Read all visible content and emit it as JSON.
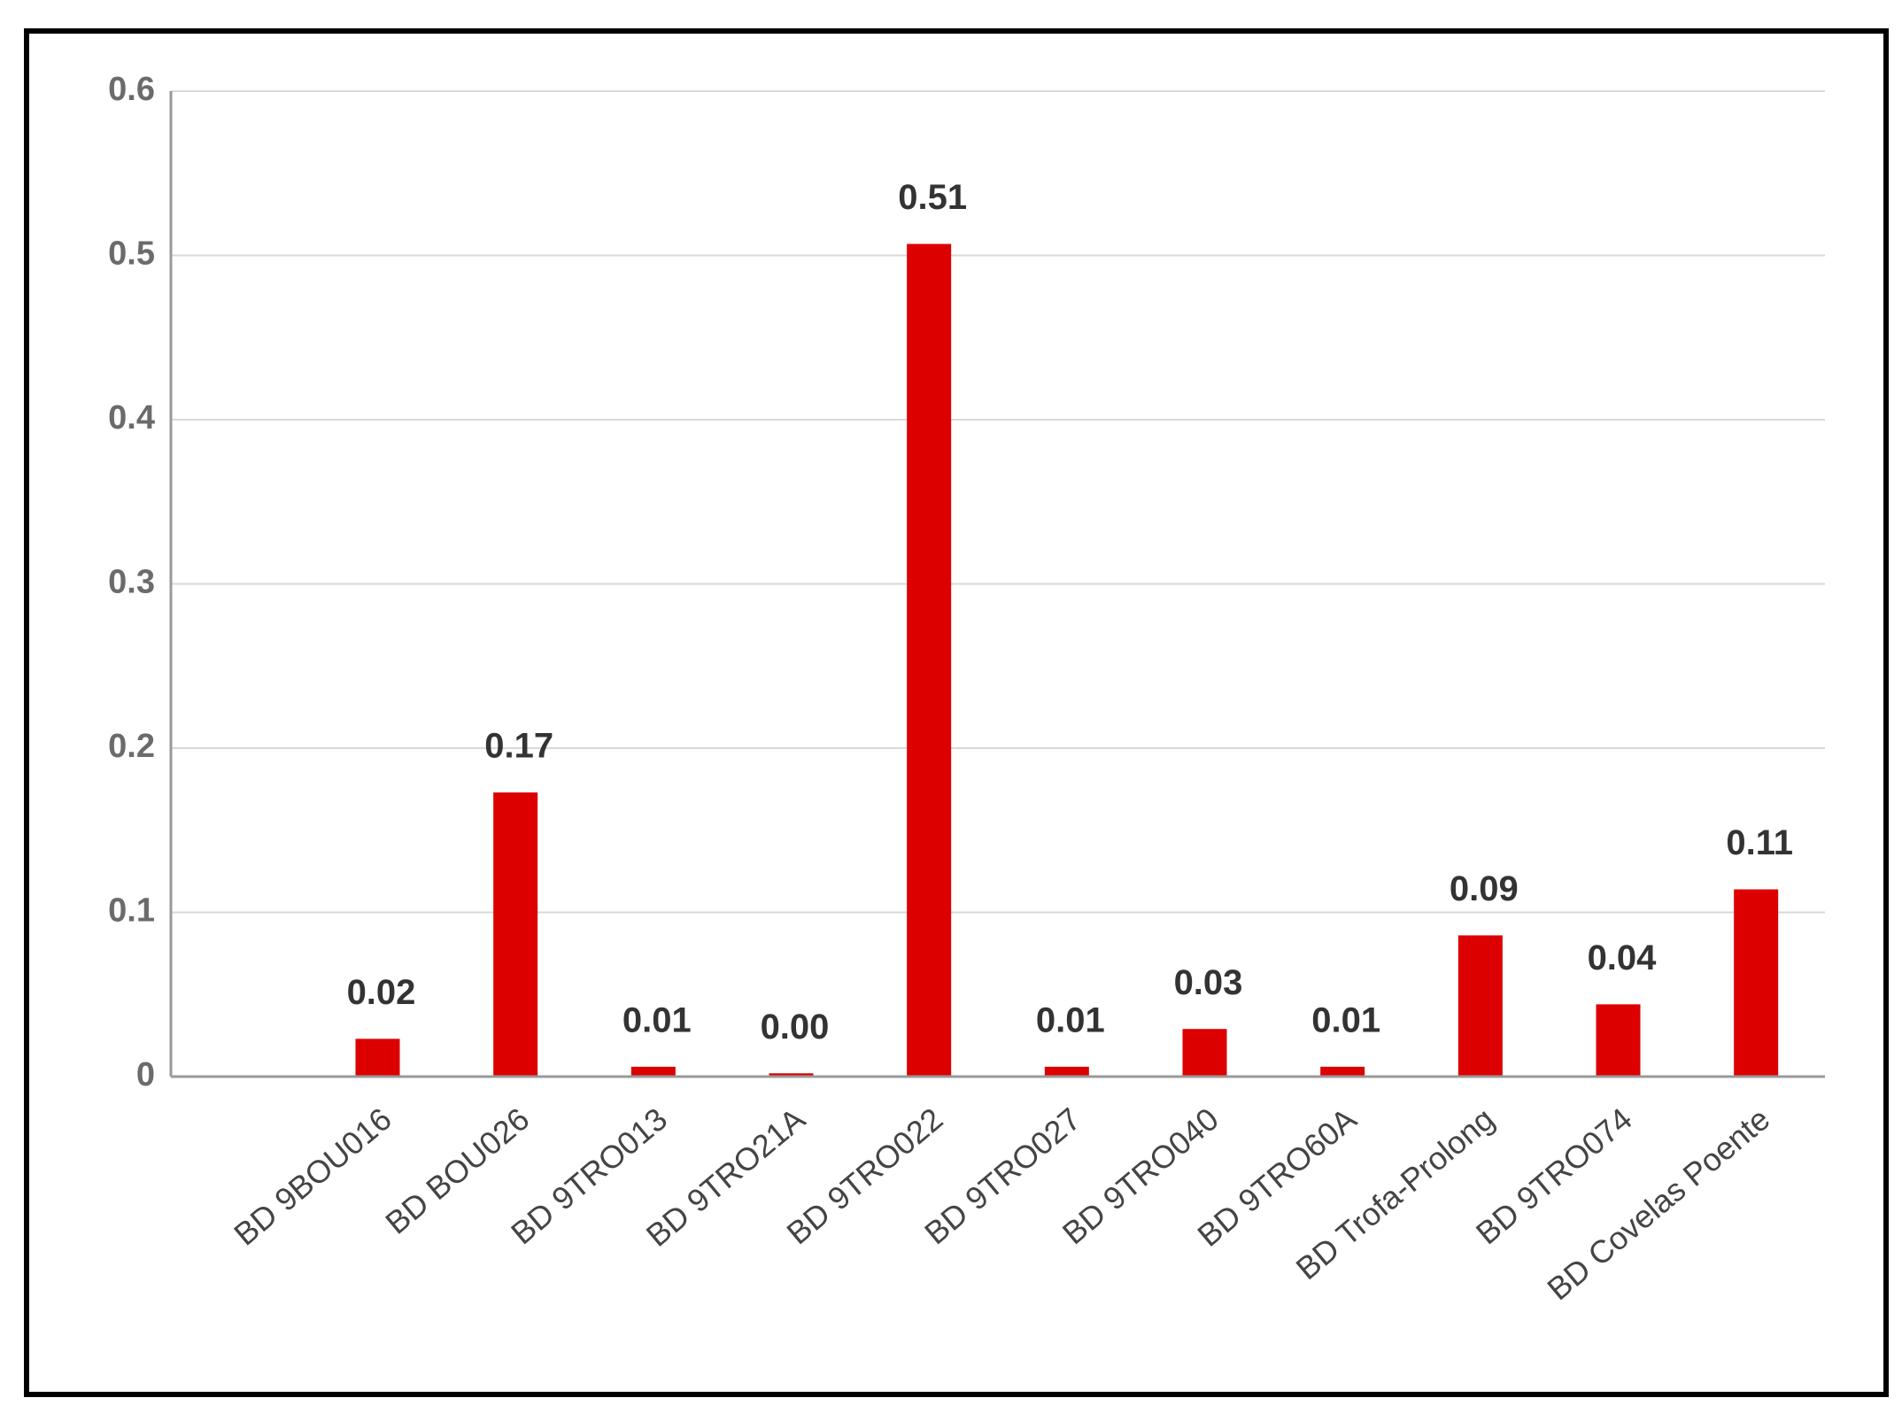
{
  "chart_data": {
    "type": "bar",
    "categories": [
      null,
      "BD 9BOU016",
      "BD BOU026",
      "BD 9TRO013",
      "BD 9TRO21A",
      "BD 9TRO022",
      "BD 9TRO027",
      "BD 9TRO040",
      "BD 9TRO60A",
      "BD Trofa-Prolong",
      "BD 9TRO074",
      "BD Covelas Poente"
    ],
    "values": [
      null,
      0.023,
      0.173,
      0.006,
      0.002,
      0.507,
      0.006,
      0.029,
      0.006,
      0.086,
      0.044,
      0.114
    ],
    "value_labels": [
      null,
      "0.02",
      "0.17",
      "0.01",
      "0.00",
      "0.51",
      "0.01",
      "0.03",
      "0.01",
      "0.09",
      "0.04",
      "0.11"
    ],
    "color": "#dd0000",
    "ylim": [
      0,
      0.6
    ],
    "yticks": [
      0,
      0.1,
      0.2,
      0.3,
      0.4,
      0.5,
      0.6
    ],
    "grid": true
  }
}
